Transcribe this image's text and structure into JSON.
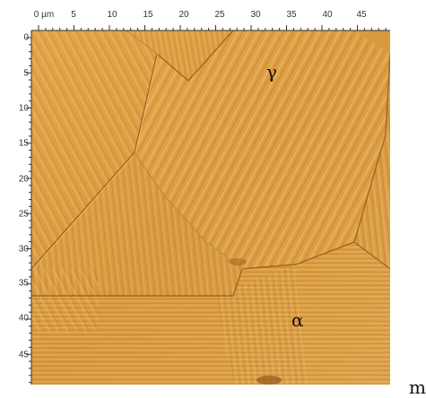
{
  "image": {
    "type": "afm-micrograph",
    "x_axis": {
      "unit_label": "0 µm",
      "ticks": [
        "5",
        "10",
        "15",
        "20",
        "25",
        "30",
        "35",
        "40",
        "45"
      ]
    },
    "y_axis": {
      "ticks": [
        "0",
        "5",
        "10",
        "15",
        "20",
        "25",
        "30",
        "35",
        "40",
        "45"
      ]
    },
    "phase_labels": {
      "gamma": "γ",
      "alpha": "α"
    },
    "trailing_text": "m",
    "colors": {
      "base": "#d99a3e",
      "light": "#f3c06a",
      "dark": "#9c5e1c",
      "axis": "#333333"
    }
  }
}
